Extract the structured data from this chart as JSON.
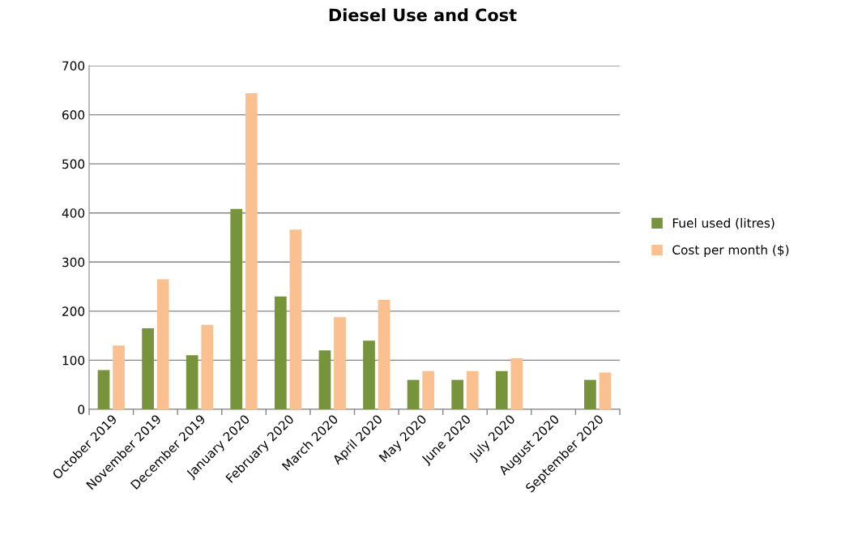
{
  "chart_data": {
    "type": "bar",
    "title": "Diesel Use and Cost",
    "categories": [
      "October 2019",
      "November 2019",
      "December 2019",
      "January 2020",
      "February 2020",
      "March 2020",
      "April 2020",
      "May 2020",
      "June 2020",
      "July 2020",
      "August 2020",
      "September 2020"
    ],
    "series": [
      {
        "name": "Fuel used (litres)",
        "color": "#77933c",
        "values": [
          80,
          165,
          110,
          408,
          230,
          120,
          140,
          60,
          60,
          78,
          0,
          60
        ]
      },
      {
        "name": "Cost per month ($)",
        "color": "#fac090",
        "values": [
          130,
          265,
          172,
          644,
          366,
          188,
          223,
          78,
          78,
          104,
          0,
          75
        ]
      }
    ],
    "ylim": [
      0,
      700
    ],
    "yticks": [
      0,
      100,
      200,
      300,
      400,
      500,
      600,
      700
    ],
    "grid": "y",
    "legend": "right"
  }
}
